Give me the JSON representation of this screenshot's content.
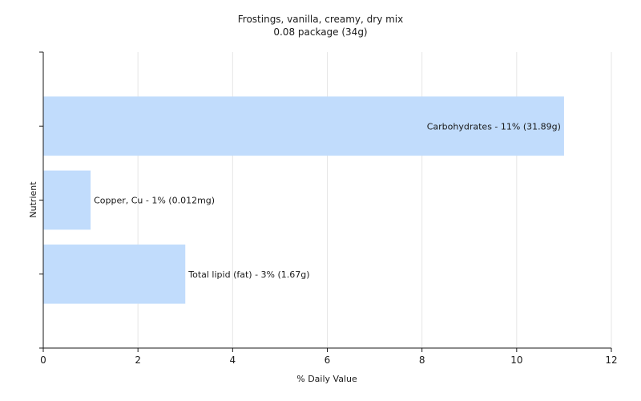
{
  "chart_data": {
    "type": "bar",
    "orientation": "horizontal",
    "title": "Frostings, vanilla, creamy, dry mix",
    "subtitle": "0.08 package (34g)",
    "xlabel": "% Daily Value",
    "ylabel": "Nutrient",
    "xlim": [
      0,
      12
    ],
    "xticks": [
      0,
      2,
      4,
      6,
      8,
      10,
      12
    ],
    "grid": true,
    "categories": [
      "Carbohydrates",
      "Copper, Cu",
      "Total lipid (fat)"
    ],
    "values": [
      11,
      1,
      3
    ],
    "data_labels": [
      "Carbohydrates - 11% (31.89g)",
      "Copper, Cu - 1% (0.012mg)",
      "Total lipid (fat) - 3% (1.67g)"
    ],
    "colors": {
      "bar": "#c1dcfc",
      "axis": "#1a1a1a",
      "grid": "#e6e6e6"
    }
  }
}
